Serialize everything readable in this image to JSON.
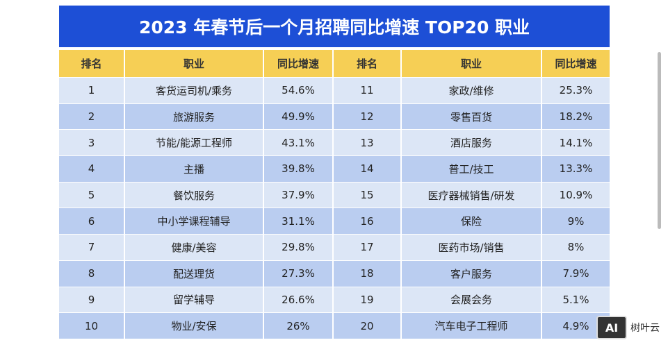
{
  "title": "2023 年春节后一个月招聘同比增速 TOP20 职业",
  "table": {
    "header": [
      "排名",
      "职业",
      "同比增速",
      "排名",
      "职业",
      "同比增速"
    ],
    "rows": [
      [
        "1",
        "客货运司机/乘务",
        "54.6%",
        "11",
        "家政/维修",
        "25.3%"
      ],
      [
        "2",
        "旅游服务",
        "49.9%",
        "12",
        "零售百货",
        "18.2%"
      ],
      [
        "3",
        "节能/能源工程师",
        "43.1%",
        "13",
        "酒店服务",
        "14.1%"
      ],
      [
        "4",
        "主播",
        "39.8%",
        "14",
        "普工/技工",
        "13.3%"
      ],
      [
        "5",
        "餐饮服务",
        "37.9%",
        "15",
        "医疗器械销售/研发",
        "10.9%"
      ],
      [
        "6",
        "中小学课程辅导",
        "31.1%",
        "16",
        "保险",
        "9%"
      ],
      [
        "7",
        "健康/美容",
        "29.8%",
        "17",
        "医药市场/销售",
        "8%"
      ],
      [
        "8",
        "配送理货",
        "27.3%",
        "18",
        "客户服务",
        "7.9%"
      ],
      [
        "9",
        "留学辅导",
        "26.6%",
        "19",
        "会展会务",
        "5.1%"
      ],
      [
        "10",
        "物业/安保",
        "26%",
        "20",
        "汽车电子工程师",
        "4.9%"
      ]
    ]
  },
  "watermark": {
    "badge": "AI",
    "text": "树叶云"
  }
}
